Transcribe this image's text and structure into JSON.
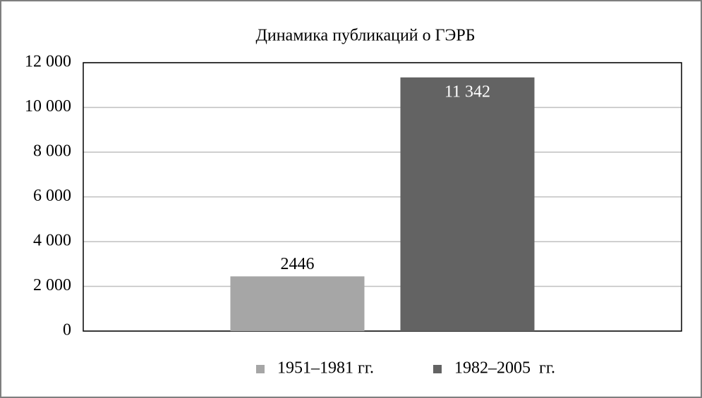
{
  "chart_data": {
    "type": "bar",
    "title": "Динамика публикаций о ГЭРБ",
    "categories": [
      null
    ],
    "series": [
      {
        "name": "1951–1981 гг.",
        "color": "#a6a6a6",
        "values": [
          2446
        ]
      },
      {
        "name": "1982–2005  гг.",
        "color": "#636363",
        "values": [
          11342
        ],
        "value_labels": [
          "11 342"
        ]
      }
    ],
    "ylim": [
      0,
      12000
    ],
    "yticks": [
      0,
      {
        "value": 2000,
        "label": "2 000"
      },
      {
        "value": 4000,
        "label": "4 000"
      },
      {
        "value": 6000,
        "label": "6 000"
      },
      {
        "value": 8000,
        "label": "8 000"
      },
      {
        "value": 10000,
        "label": "10 000"
      },
      {
        "value": 12000,
        "label": "12 000"
      }
    ],
    "grid": true,
    "legend": "bottom"
  }
}
